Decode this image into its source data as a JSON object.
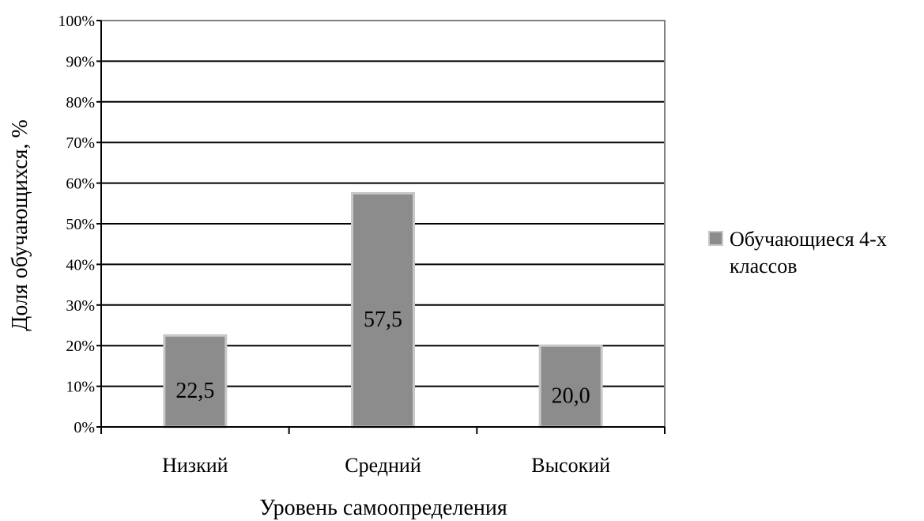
{
  "chart_data": {
    "type": "bar",
    "categories": [
      "Низкий",
      "Средний",
      "Высокий"
    ],
    "series": [
      {
        "name": "Обучающиеся 4-х классов",
        "values": [
          22.5,
          57.5,
          20.0
        ]
      }
    ],
    "data_labels": [
      "22,5",
      "57,5",
      "20,0"
    ],
    "title": "",
    "xlabel": "Уровень самоопределения",
    "ylabel": "Доля обучающихся, %",
    "ylim": [
      0,
      100
    ],
    "y_ticks": [
      "0%",
      "10%",
      "20%",
      "30%",
      "40%",
      "50%",
      "60%",
      "70%",
      "80%",
      "90%",
      "100%"
    ],
    "grid": true,
    "legend_position": "right",
    "legend_lines": [
      "Обучающиеся 4-х",
      "классов"
    ],
    "colors": {
      "bar_fill": "#8c8c8c",
      "bar_edge": "#c8c8c8",
      "grid": "#000000",
      "plot_border": "#808080"
    }
  }
}
